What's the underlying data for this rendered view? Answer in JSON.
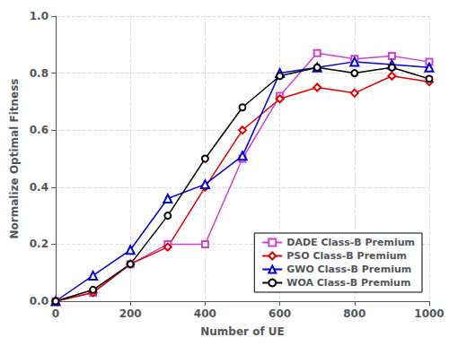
{
  "chart_data": {
    "type": "line",
    "xlabel": "Number of UE",
    "ylabel": "Normalize Optimal Fitness",
    "x": [
      0,
      100,
      200,
      300,
      400,
      500,
      600,
      700,
      800,
      900,
      1000
    ],
    "series": [
      {
        "name": "DADE Class-B Premium",
        "color": "#cc44cc",
        "marker": "square",
        "values": [
          0.0,
          0.03,
          0.13,
          0.2,
          0.2,
          0.5,
          0.72,
          0.87,
          0.85,
          0.86,
          0.84
        ]
      },
      {
        "name": "PSO Class-B Premium",
        "color": "#dd0000",
        "marker": "diamond",
        "values": [
          0.0,
          0.03,
          0.13,
          0.19,
          0.4,
          0.6,
          0.71,
          0.75,
          0.73,
          0.79,
          0.77
        ]
      },
      {
        "name": "GWO Class-B Premium",
        "color": "#0000cc",
        "marker": "triangle",
        "values": [
          0.0,
          0.09,
          0.18,
          0.36,
          0.41,
          0.51,
          0.8,
          0.82,
          0.84,
          0.83,
          0.82
        ]
      },
      {
        "name": "WOA Class-B Premium",
        "color": "#000000",
        "marker": "circle",
        "values": [
          0.0,
          0.04,
          0.13,
          0.3,
          0.5,
          0.68,
          0.79,
          0.82,
          0.8,
          0.82,
          0.78
        ]
      }
    ],
    "xlim": [
      0,
      1000
    ],
    "xticks": [
      0,
      200,
      400,
      600,
      800,
      1000
    ],
    "ylim": [
      0,
      1.0
    ],
    "yticks": [
      {
        "value": 0,
        "label": "0.0"
      },
      0.2,
      0.4,
      0.6,
      0.8,
      {
        "value": 1.0,
        "label": "1.0"
      }
    ],
    "grid": true,
    "legend": "lower right"
  }
}
